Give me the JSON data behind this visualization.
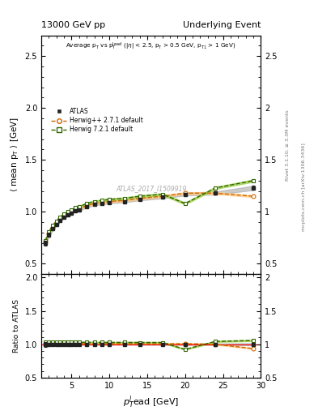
{
  "title_left": "13000 GeV pp",
  "title_right": "Underlying Event",
  "plot_label": "ATLAS_2017_I1509919",
  "ylabel_main": "⟨ mean p$_T$ ⟩ [GeV]",
  "ylabel_ratio": "Ratio to ATLAS",
  "xlabel": "$p_T^l$ead [GeV]",
  "ylim_main": [
    0.4,
    2.7
  ],
  "ylim_ratio": [
    0.5,
    2.05
  ],
  "yticks_main": [
    0.5,
    1.0,
    1.5,
    2.0,
    2.5
  ],
  "yticks_ratio": [
    0.5,
    1.0,
    1.5,
    2.0
  ],
  "xlim": [
    1,
    30
  ],
  "xticks": [
    5,
    10,
    15,
    20,
    25,
    30
  ],
  "right_label1": "Rivet 3.1.10, ≥ 3.3M events",
  "right_label2": "mcplots.cern.ch [arXiv:1306.3436]",
  "atlas_x": [
    1.5,
    2.0,
    2.5,
    3.0,
    3.5,
    4.0,
    4.5,
    5.0,
    5.5,
    6.0,
    7.0,
    8.0,
    9.0,
    10.0,
    12.0,
    14.0,
    17.0,
    20.0,
    24.0,
    29.0
  ],
  "atlas_y": [
    0.7,
    0.78,
    0.84,
    0.88,
    0.92,
    0.95,
    0.97,
    0.99,
    1.01,
    1.02,
    1.05,
    1.07,
    1.08,
    1.09,
    1.1,
    1.12,
    1.14,
    1.17,
    1.18,
    1.23
  ],
  "atlas_yerr": [
    0.025,
    0.018,
    0.014,
    0.012,
    0.01,
    0.009,
    0.009,
    0.008,
    0.008,
    0.008,
    0.008,
    0.008,
    0.008,
    0.008,
    0.008,
    0.009,
    0.01,
    0.012,
    0.014,
    0.02
  ],
  "herwig_pp_x": [
    1.5,
    2.0,
    2.5,
    3.0,
    3.5,
    4.0,
    4.5,
    5.0,
    5.5,
    6.0,
    7.0,
    8.0,
    9.0,
    10.0,
    12.0,
    14.0,
    17.0,
    20.0,
    24.0,
    29.0
  ],
  "herwig_pp_y": [
    0.71,
    0.79,
    0.85,
    0.89,
    0.93,
    0.96,
    0.98,
    1.0,
    1.02,
    1.03,
    1.06,
    1.08,
    1.09,
    1.1,
    1.11,
    1.13,
    1.15,
    1.18,
    1.18,
    1.15
  ],
  "herwig7_x": [
    1.5,
    2.0,
    2.5,
    3.0,
    3.5,
    4.0,
    4.5,
    5.0,
    5.5,
    6.0,
    7.0,
    8.0,
    9.0,
    10.0,
    12.0,
    14.0,
    17.0,
    20.0,
    24.0,
    29.0
  ],
  "herwig7_y": [
    0.72,
    0.81,
    0.87,
    0.91,
    0.95,
    0.98,
    1.0,
    1.02,
    1.04,
    1.05,
    1.08,
    1.1,
    1.11,
    1.12,
    1.13,
    1.15,
    1.17,
    1.08,
    1.23,
    1.3
  ],
  "atlas_color": "#222222",
  "herwig_pp_color": "#cc6600",
  "herwig7_color": "#336600",
  "atlas_band_color": "#aaaaaa",
  "herwig7_band_color": "#99cc44",
  "herwig_pp_band_color": "#ffcc88"
}
